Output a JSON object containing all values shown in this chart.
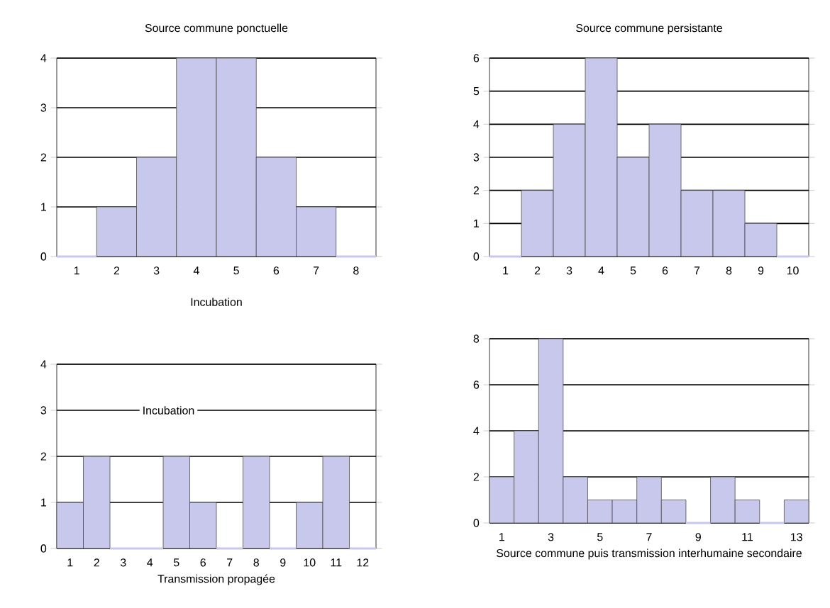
{
  "chart_data": [
    {
      "type": "bar",
      "title": "Source commune ponctuelle",
      "categories": [
        "1",
        "2",
        "3",
        "4",
        "5",
        "6",
        "7",
        "8"
      ],
      "values": [
        0,
        1,
        2,
        4,
        4,
        2,
        1,
        0
      ],
      "color": "#c8c8ec",
      "ylim": [
        0,
        4
      ],
      "yticks": [
        0,
        1,
        2,
        3,
        4
      ],
      "grid": "y",
      "annotations": [
        "Incubation"
      ]
    },
    {
      "type": "bar",
      "title": "Source commune persistante",
      "categories": [
        "1",
        "2",
        "3",
        "4",
        "5",
        "6",
        "7",
        "8",
        "9",
        "10"
      ],
      "values": [
        0,
        2,
        4,
        6,
        3,
        4,
        2,
        2,
        1,
        0
      ],
      "color": "#c8c8ec",
      "ylim": [
        0,
        6
      ],
      "yticks": [
        0,
        1,
        2,
        3,
        4,
        5,
        6
      ],
      "grid": "y"
    },
    {
      "type": "bar",
      "xlabel": "Transmission propagée",
      "categories": [
        "1",
        "2",
        "3",
        "4",
        "5",
        "6",
        "7",
        "8",
        "9",
        "10",
        "11",
        "12"
      ],
      "values": [
        1,
        2,
        0,
        0,
        2,
        1,
        0,
        2,
        0,
        1,
        2,
        0
      ],
      "color": "#c8c8ec",
      "ylim": [
        0,
        4
      ],
      "yticks": [
        0,
        1,
        2,
        3,
        4
      ],
      "grid": "y",
      "annotations": [
        "Incubation"
      ]
    },
    {
      "type": "bar",
      "xlabel": "Source commune puis transmission interhumaine secondaire",
      "categories": [
        "1",
        null,
        "3",
        null,
        "5",
        null,
        "7",
        null,
        "9",
        null,
        "11",
        null,
        "13"
      ],
      "values": [
        2,
        4,
        8,
        2,
        1,
        1,
        2,
        1,
        0,
        2,
        1,
        0,
        1
      ],
      "color": "#c8c8ec",
      "ylim": [
        0,
        8
      ],
      "yticks": [
        0,
        2,
        4,
        6,
        8
      ],
      "grid": "y"
    }
  ]
}
